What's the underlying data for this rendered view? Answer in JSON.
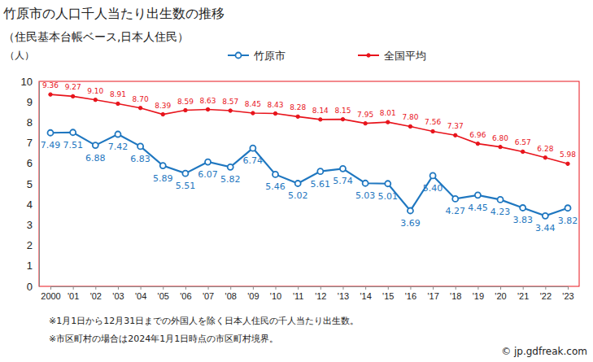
{
  "chart_data": {
    "type": "line",
    "title": "竹原市の人口千人当たり出生数の推移",
    "subtitle": "（住民基本台帳ベース,日本人住民）",
    "y_label": "（人）",
    "categories": [
      "2000",
      "'01",
      "'02",
      "'03",
      "'04",
      "'05",
      "'06",
      "'07",
      "'08",
      "'09",
      "'10",
      "'11",
      "'12",
      "'13",
      "'14",
      "'15",
      "'16",
      "'17",
      "'18",
      "'19",
      "'20",
      "'21",
      "'22",
      "'23"
    ],
    "series": [
      {
        "name": "竹原市",
        "color": "#1f77c0",
        "marker": "circle",
        "values": [
          7.49,
          7.51,
          6.88,
          7.42,
          6.83,
          5.89,
          5.51,
          6.07,
          5.82,
          6.74,
          5.46,
          5.02,
          5.61,
          5.74,
          5.03,
          5.01,
          3.69,
          5.4,
          4.27,
          4.45,
          4.23,
          3.83,
          3.44,
          3.82
        ],
        "value_labels": [
          "7.49",
          "7.51",
          "6.88",
          "7.42",
          "6.83",
          "5.89",
          "5.51",
          "6.07",
          "5.82",
          "6.74",
          "5.46",
          "5.02",
          "5.61",
          "5.74",
          "5.03",
          "5.01",
          "3.69",
          "5.40",
          "4.27",
          "4.45",
          "4.23",
          "3.83",
          "3.44",
          "3.82"
        ]
      },
      {
        "name": "全国平均",
        "color": "#e8141c",
        "marker": "circle",
        "values": [
          9.36,
          9.27,
          9.1,
          8.91,
          8.7,
          8.39,
          8.59,
          8.63,
          8.57,
          8.45,
          8.43,
          8.28,
          8.14,
          8.15,
          7.95,
          8.01,
          7.8,
          7.56,
          7.37,
          6.96,
          6.8,
          6.57,
          6.28,
          5.98
        ],
        "value_labels": [
          "9.36",
          "9.27",
          "9.10",
          "8.91",
          "8.70",
          "8.39",
          "8.59",
          "8.63",
          "8.57",
          "8.45",
          "8.43",
          "8.28",
          "8.14",
          "8.15",
          "7.95",
          "8.01",
          "7.80",
          "7.56",
          "7.37",
          "6.96",
          "6.80",
          "6.57",
          "6.28",
          "5.98"
        ]
      }
    ],
    "ylim": [
      0,
      10
    ],
    "yticks": [
      0,
      1,
      2,
      3,
      4,
      5,
      6,
      7,
      8,
      9,
      10
    ],
    "grid": false,
    "legend": "top",
    "data_labels": true,
    "annotations": [
      "※1月1日から12月31日までの外国人を除く日本人住民の千人当たり出生数。",
      "※市区町村の場合は2024年1月1日時点の市区町村境界。",
      "© jp.gdfreak.com"
    ]
  }
}
